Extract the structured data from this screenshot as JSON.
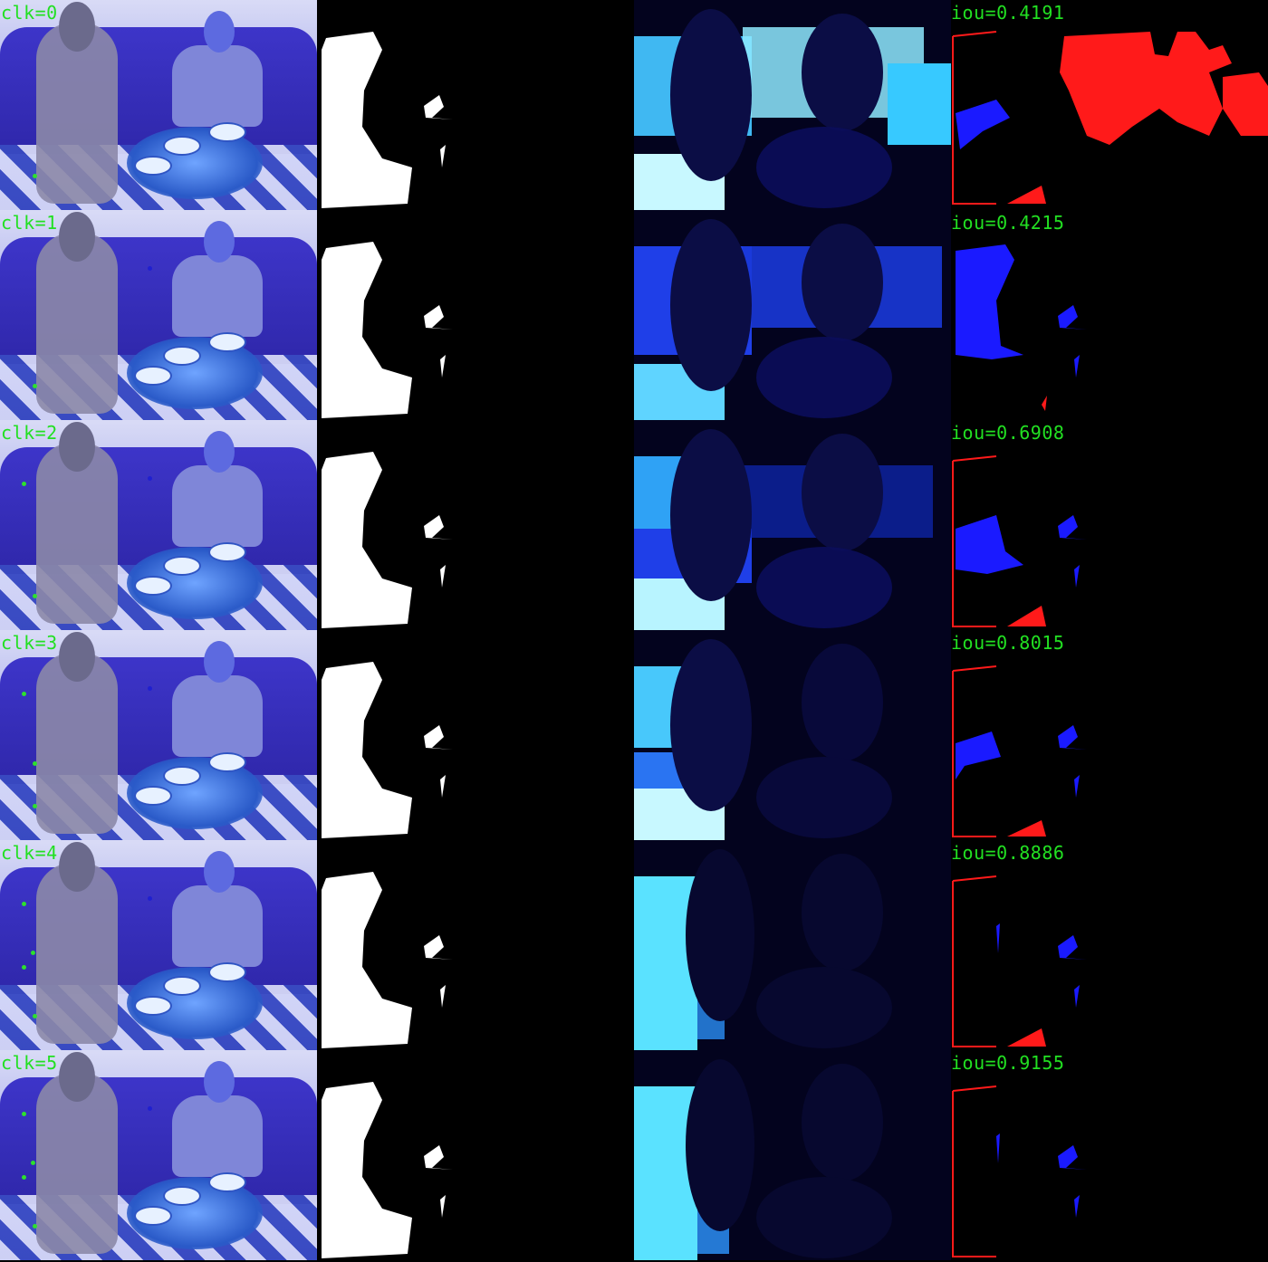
{
  "rows": [
    {
      "clk": "clk=0",
      "iou": "iou=0.4191"
    },
    {
      "clk": "clk=1",
      "iou": "iou=0.4215"
    },
    {
      "clk": "clk=2",
      "iou": "iou=0.6908"
    },
    {
      "clk": "clk=3",
      "iou": "iou=0.8015"
    },
    {
      "clk": "clk=4",
      "iou": "iou=0.8886"
    },
    {
      "clk": "clk=5",
      "iou": "iou=0.9155"
    }
  ],
  "colors": {
    "label": "#22e022",
    "false_negative": "#ff1a1a",
    "false_positive": "#1a1aff",
    "mask": "#ffffff",
    "background": "#000000"
  }
}
